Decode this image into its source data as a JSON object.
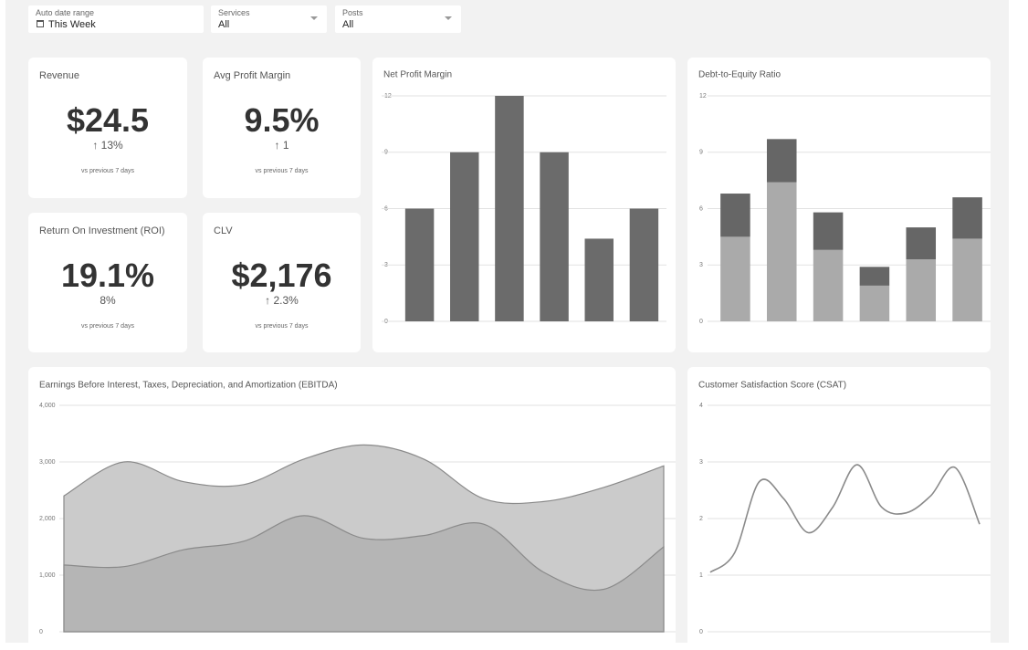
{
  "filters": [
    {
      "label": "Auto date range",
      "value": "This Week"
    },
    {
      "label": "Services",
      "value": "All"
    },
    {
      "label": "Posts",
      "value": "All"
    }
  ],
  "kpis": [
    {
      "title": "Revenue",
      "value": "$24.5",
      "change": "↑ 13%",
      "note": "vs previous 7 days"
    },
    {
      "title": "Avg Profit Margin",
      "value": "9.5%",
      "change": "↑ 1",
      "note": "vs previous 7 days"
    },
    {
      "title": "Return On Investment (ROI)",
      "value": "19.1%",
      "change": "8%",
      "note": "vs previous 7 days"
    },
    {
      "title": "CLV",
      "value": "$2,176",
      "change": "↑ 2.3%",
      "note": "vs previous 7 days"
    }
  ],
  "charts": [
    {
      "type": "bar",
      "title": "Net Profit Margin",
      "values": [
        6,
        9,
        12,
        9,
        4.4,
        6
      ],
      "color": "#6b6b6b",
      "ylim": [
        0,
        12
      ],
      "yticks": [
        0,
        3,
        6,
        9,
        12
      ],
      "grid": true
    },
    {
      "type": "stacked_bar",
      "title": "Debt-to-Equity Ratio",
      "series": [
        {
          "color": "#aaaaaa",
          "values": [
            4.5,
            7.4,
            3.8,
            1.9,
            3.3,
            4.4
          ]
        },
        {
          "color": "#666666",
          "values": [
            2.3,
            2.3,
            2.0,
            1.0,
            1.7,
            2.2
          ]
        }
      ],
      "ylim": [
        0,
        12
      ],
      "yticks": [
        0,
        3,
        6,
        9,
        12
      ],
      "grid": true
    },
    {
      "type": "area",
      "title": "Earnings Before Interest, Taxes, Depreciation, and Amortization (EBITDA)",
      "series": [
        {
          "color": "#cbcbcb",
          "values": [
            2400,
            3000,
            2650,
            2600,
            3050,
            3300,
            3050,
            2350,
            2300,
            2550,
            2930
          ]
        },
        {
          "color": "#b5b5b5",
          "values": [
            1180,
            1150,
            1450,
            1600,
            2050,
            1650,
            1700,
            1900,
            1050,
            750,
            1500
          ]
        }
      ],
      "ylim": [
        0,
        4000
      ],
      "yticks": [
        0,
        {
          "value": 1000,
          "label": "1,000"
        },
        {
          "value": 2000,
          "label": "2,000"
        },
        {
          "value": 3000,
          "label": "3,000"
        },
        {
          "value": 4000,
          "label": "4,000"
        }
      ],
      "grid": true
    },
    {
      "type": "line",
      "title": "Customer Satisfaction Score (CSAT)",
      "color": "#8a8a8a",
      "values": [
        1.05,
        1.4,
        2.65,
        2.35,
        1.75,
        2.2,
        2.95,
        2.2,
        2.1,
        2.4,
        2.9,
        1.9
      ],
      "ylim": [
        0,
        4
      ],
      "yticks": [
        0,
        1,
        2,
        3,
        4
      ],
      "grid": true
    }
  ]
}
